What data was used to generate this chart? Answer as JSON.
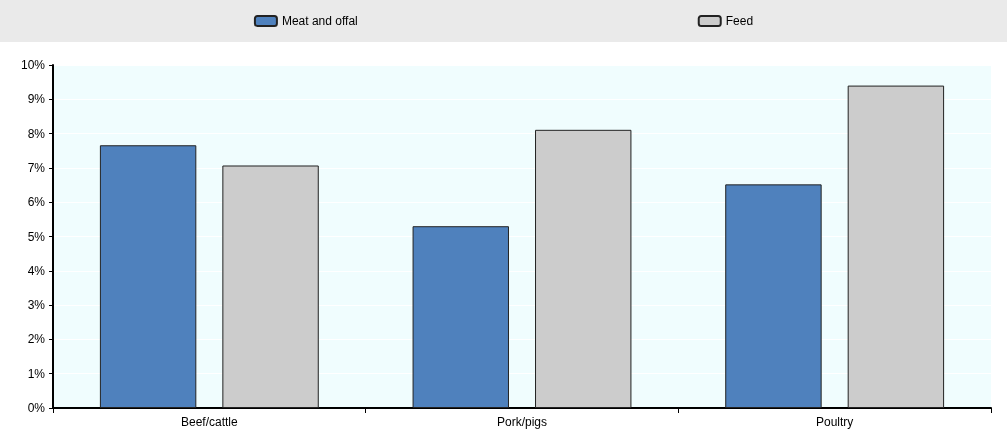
{
  "chart_data": {
    "type": "bar",
    "categories": [
      "Beef/cattle",
      "Pork/pigs",
      "Poultry"
    ],
    "series": [
      {
        "name": "Meat and offal",
        "color": "#4f81bd",
        "values": [
          7.66,
          5.3,
          6.52
        ]
      },
      {
        "name": "Feed",
        "color": "#cccccc",
        "values": [
          7.07,
          8.11,
          9.4
        ]
      }
    ],
    "ylim": [
      0,
      10
    ],
    "yticks": [
      {
        "value": 0,
        "label": "0%"
      },
      {
        "value": 1,
        "label": "1%"
      },
      {
        "value": 2,
        "label": "2%"
      },
      {
        "value": 3,
        "label": "3%"
      },
      {
        "value": 4,
        "label": "4%"
      },
      {
        "value": 5,
        "label": "5%"
      },
      {
        "value": 6,
        "label": "6%"
      },
      {
        "value": 7,
        "label": "7%"
      },
      {
        "value": 8,
        "label": "8%"
      },
      {
        "value": 9,
        "label": "9%"
      },
      {
        "value": 10,
        "label": "10%"
      }
    ],
    "grid": "y",
    "legend": "top"
  }
}
